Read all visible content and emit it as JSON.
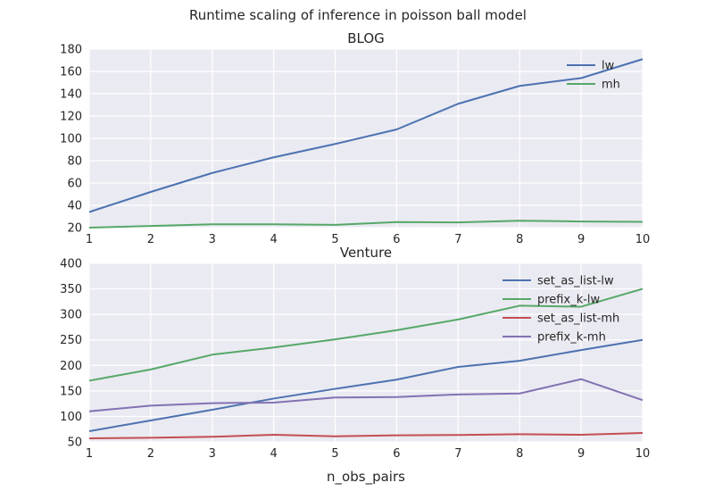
{
  "figure": {
    "suptitle": "Runtime scaling of inference in poisson ball model"
  },
  "chart_data": [
    {
      "type": "line",
      "title": "BLOG",
      "xlabel": "",
      "ylabel": "",
      "x": [
        1,
        2,
        3,
        4,
        5,
        6,
        7,
        8,
        9,
        10
      ],
      "xlim": [
        1,
        10
      ],
      "ylim": [
        20,
        180
      ],
      "xticks": [
        1,
        2,
        3,
        4,
        5,
        6,
        7,
        8,
        9,
        10
      ],
      "yticks": [
        20,
        40,
        60,
        80,
        100,
        120,
        140,
        160,
        180
      ],
      "grid": true,
      "legend_position": "top-right",
      "series": [
        {
          "name": "lw",
          "color": "#4c72b0",
          "values": [
            34,
            52,
            69,
            83,
            95,
            108,
            131,
            147,
            154,
            171
          ]
        },
        {
          "name": "mh",
          "color": "#55a868",
          "values": [
            20,
            21.5,
            23,
            23,
            22.5,
            25,
            24.7,
            26.2,
            25.5,
            25.2
          ]
        }
      ]
    },
    {
      "type": "line",
      "title": "Venture",
      "xlabel": "n_obs_pairs",
      "ylabel": "",
      "x": [
        1,
        2,
        3,
        4,
        5,
        6,
        7,
        8,
        9,
        10
      ],
      "xlim": [
        1,
        10
      ],
      "ylim": [
        50,
        400
      ],
      "xticks": [
        1,
        2,
        3,
        4,
        5,
        6,
        7,
        8,
        9,
        10
      ],
      "yticks": [
        50,
        100,
        150,
        200,
        250,
        300,
        350,
        400
      ],
      "grid": true,
      "legend_position": "top-right",
      "series": [
        {
          "name": "set_as_list-lw",
          "color": "#4c72b0",
          "values": [
            71,
            92,
            113,
            135,
            154,
            172,
            197,
            209,
            230,
            250
          ]
        },
        {
          "name": "prefix_k-lw",
          "color": "#55a868",
          "values": [
            170,
            192,
            221,
            235,
            251,
            269,
            290,
            317,
            315,
            350
          ]
        },
        {
          "name": "set_as_list-mh",
          "color": "#c44e52",
          "values": [
            57,
            58,
            60,
            64,
            61,
            63,
            63.5,
            65,
            64,
            67.5
          ]
        },
        {
          "name": "prefix_k-mh",
          "color": "#8172b2",
          "values": [
            110,
            121,
            126,
            127,
            137,
            138,
            143,
            145,
            173,
            132
          ]
        }
      ]
    }
  ]
}
